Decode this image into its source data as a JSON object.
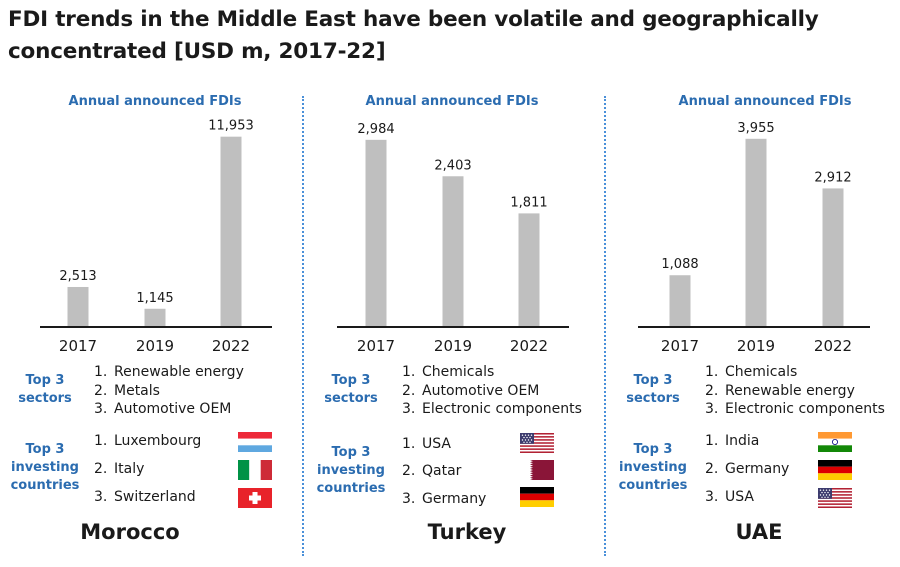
{
  "title": "FDI trends in the Middle East have been volatile and geographically concentrated [USD m, 2017-22]",
  "colors": {
    "bar": "#bfbfbf",
    "axis": "#1a1a1a",
    "accent": "#2b6cb0",
    "divider": "#4a90d9"
  },
  "labels": {
    "top3_sectors": "Top 3\nsectors",
    "top3_investing": "Top 3\ninvesting\ncountries"
  },
  "chart_data": [
    {
      "type": "bar",
      "title": "Annual announced FDIs",
      "categories": [
        "2017",
        "2019",
        "2022"
      ],
      "values": [
        2513,
        1145,
        11953
      ],
      "value_labels": [
        "2,513",
        "1,145",
        "11,953"
      ],
      "xlabel": "",
      "ylabel": "",
      "ylim": [
        0,
        13000
      ],
      "grid": false
    },
    {
      "type": "bar",
      "title": "Annual announced FDIs",
      "categories": [
        "2017",
        "2019",
        "2022"
      ],
      "values": [
        2984,
        2403,
        1811
      ],
      "value_labels": [
        "2,984",
        "2,403",
        "1,811"
      ],
      "xlabel": "",
      "ylabel": "",
      "ylim": [
        0,
        3300
      ],
      "grid": false
    },
    {
      "type": "bar",
      "title": "Annual announced FDIs",
      "categories": [
        "2017",
        "2019",
        "2022"
      ],
      "values": [
        1088,
        3955,
        2912
      ],
      "value_labels": [
        "1,088",
        "3,955",
        "2,912"
      ],
      "xlabel": "",
      "ylabel": "",
      "ylim": [
        0,
        4350
      ],
      "grid": false
    }
  ],
  "panels": [
    {
      "country": "Morocco",
      "sectors": [
        {
          "num": "1.",
          "name": "Renewable energy"
        },
        {
          "num": "2.",
          "name": "Metals"
        },
        {
          "num": "3.",
          "name": "Automotive OEM"
        }
      ],
      "investors": [
        {
          "num": "1.",
          "name": "Luxembourg",
          "flag": "luxembourg-flag"
        },
        {
          "num": "2.",
          "name": "Italy",
          "flag": "italy-flag"
        },
        {
          "num": "3.",
          "name": "Switzerland",
          "flag": "switzerland-flag"
        }
      ]
    },
    {
      "country": "Turkey",
      "sectors": [
        {
          "num": "1.",
          "name": "Chemicals"
        },
        {
          "num": "2.",
          "name": "Automotive OEM"
        },
        {
          "num": "3.",
          "name": "Electronic components"
        }
      ],
      "investors": [
        {
          "num": "1.",
          "name": "USA",
          "flag": "usa-flag"
        },
        {
          "num": "2.",
          "name": "Qatar",
          "flag": "qatar-flag"
        },
        {
          "num": "3.",
          "name": "Germany",
          "flag": "germany-flag"
        }
      ]
    },
    {
      "country": "UAE",
      "sectors": [
        {
          "num": "1.",
          "name": "Chemicals"
        },
        {
          "num": "2.",
          "name": "Renewable energy"
        },
        {
          "num": "3.",
          "name": "Electronic components"
        }
      ],
      "investors": [
        {
          "num": "1.",
          "name": "India",
          "flag": "india-flag"
        },
        {
          "num": "2.",
          "name": "Germany",
          "flag": "germany-flag"
        },
        {
          "num": "3.",
          "name": "USA",
          "flag": "usa-flag"
        }
      ]
    }
  ]
}
